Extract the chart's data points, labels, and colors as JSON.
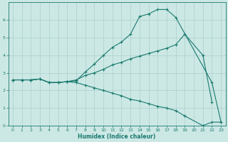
{
  "xlabel": "Humidex (Indice chaleur)",
  "xlim": [
    -0.5,
    23.5
  ],
  "ylim": [
    0,
    7
  ],
  "yticks": [
    0,
    1,
    2,
    3,
    4,
    5,
    6
  ],
  "xticks": [
    0,
    1,
    2,
    3,
    4,
    5,
    6,
    7,
    8,
    9,
    10,
    11,
    12,
    13,
    14,
    15,
    16,
    17,
    18,
    19,
    20,
    21,
    22,
    23
  ],
  "bg_color": "#cce8e5",
  "grid_color": "#aacfcc",
  "line_color": "#1a7a6e",
  "line1_x": [
    0,
    1,
    2,
    3,
    4,
    5,
    6,
    7,
    8,
    9,
    10,
    11,
    12,
    13,
    14,
    15,
    16,
    17,
    18,
    22,
    23
  ],
  "line1_y": [
    2.6,
    2.6,
    2.6,
    2.65,
    2.45,
    2.45,
    2.5,
    2.55,
    3.05,
    3.5,
    4.0,
    4.45,
    4.75,
    5.2,
    6.2,
    6.35,
    6.6,
    6.6,
    6.15,
    2.45,
    0.2
  ],
  "line2_x": [
    0,
    1,
    2,
    3,
    4,
    5,
    6,
    7,
    8,
    9,
    10,
    11,
    12,
    13,
    14,
    15,
    16,
    17,
    18,
    19,
    21,
    22
  ],
  "line2_y": [
    2.6,
    2.6,
    2.6,
    2.65,
    2.45,
    2.45,
    2.5,
    2.6,
    2.85,
    3.0,
    3.2,
    3.45,
    3.6,
    3.8,
    3.95,
    4.1,
    4.25,
    4.4,
    4.6,
    5.2,
    4.0,
    1.35
  ],
  "line3_x": [
    0,
    1,
    2,
    3,
    4,
    5,
    6,
    7,
    8,
    9,
    10,
    11,
    12,
    13,
    14,
    15,
    16,
    17,
    18,
    19,
    21,
    22,
    23
  ],
  "line3_y": [
    2.6,
    2.6,
    2.6,
    2.65,
    2.45,
    2.45,
    2.5,
    2.45,
    2.3,
    2.15,
    2.0,
    1.85,
    1.7,
    1.5,
    1.4,
    1.25,
    1.1,
    1.0,
    0.85,
    0.55,
    0.0,
    0.2,
    0.2
  ]
}
